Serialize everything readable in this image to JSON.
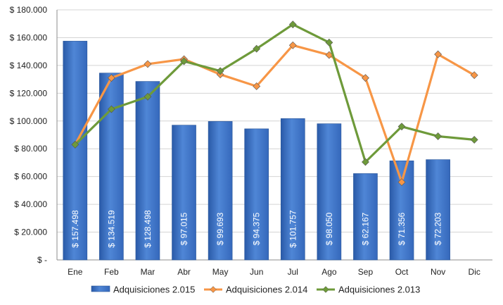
{
  "chart_data": {
    "type": "bar",
    "categories": [
      "Ene",
      "Feb",
      "Mar",
      "Abr",
      "May",
      "Jun",
      "Jul",
      "Ago",
      "Sep",
      "Oct",
      "Nov",
      "Dic"
    ],
    "ylim": [
      0,
      180000
    ],
    "yticks": [
      0,
      20000,
      40000,
      60000,
      80000,
      100000,
      120000,
      140000,
      160000,
      180000
    ],
    "ytick_labels": [
      "$ -",
      "$ 20.000",
      "$ 40.000",
      "$ 60.000",
      "$ 80.000",
      "$ 100.000",
      "$ 120.000",
      "$ 140.000",
      "$ 160.000",
      "$ 180.000"
    ],
    "grid": true,
    "legend_position": "bottom",
    "series": [
      {
        "name": "Adquisiciones 2.015",
        "kind": "bar",
        "color": "#4f86d6",
        "values": [
          157498,
          134519,
          128498,
          97015,
          99693,
          94375,
          101757,
          98050,
          62167,
          71356,
          72203,
          null
        ],
        "labels": [
          "$ 157.498",
          "$ 134.519",
          "$ 128.498",
          "$ 97.015",
          "$ 99.693",
          "$ 94.375",
          "$ 101.757",
          "$ 98.050",
          "$ 62.167",
          "$ 71.356",
          "$ 72.203",
          ""
        ]
      },
      {
        "name": "Adquisiciones 2.014",
        "kind": "line",
        "color": "#f79646",
        "values": [
          83000,
          131000,
          141000,
          144500,
          133500,
          125000,
          154500,
          147500,
          131000,
          56000,
          148000,
          133000
        ]
      },
      {
        "name": "Adquisiciones 2.013",
        "kind": "line",
        "color": "#6e9a3a",
        "values": [
          83000,
          108500,
          117500,
          143000,
          136000,
          152000,
          169500,
          156500,
          70500,
          96000,
          89000,
          86500
        ]
      }
    ]
  }
}
